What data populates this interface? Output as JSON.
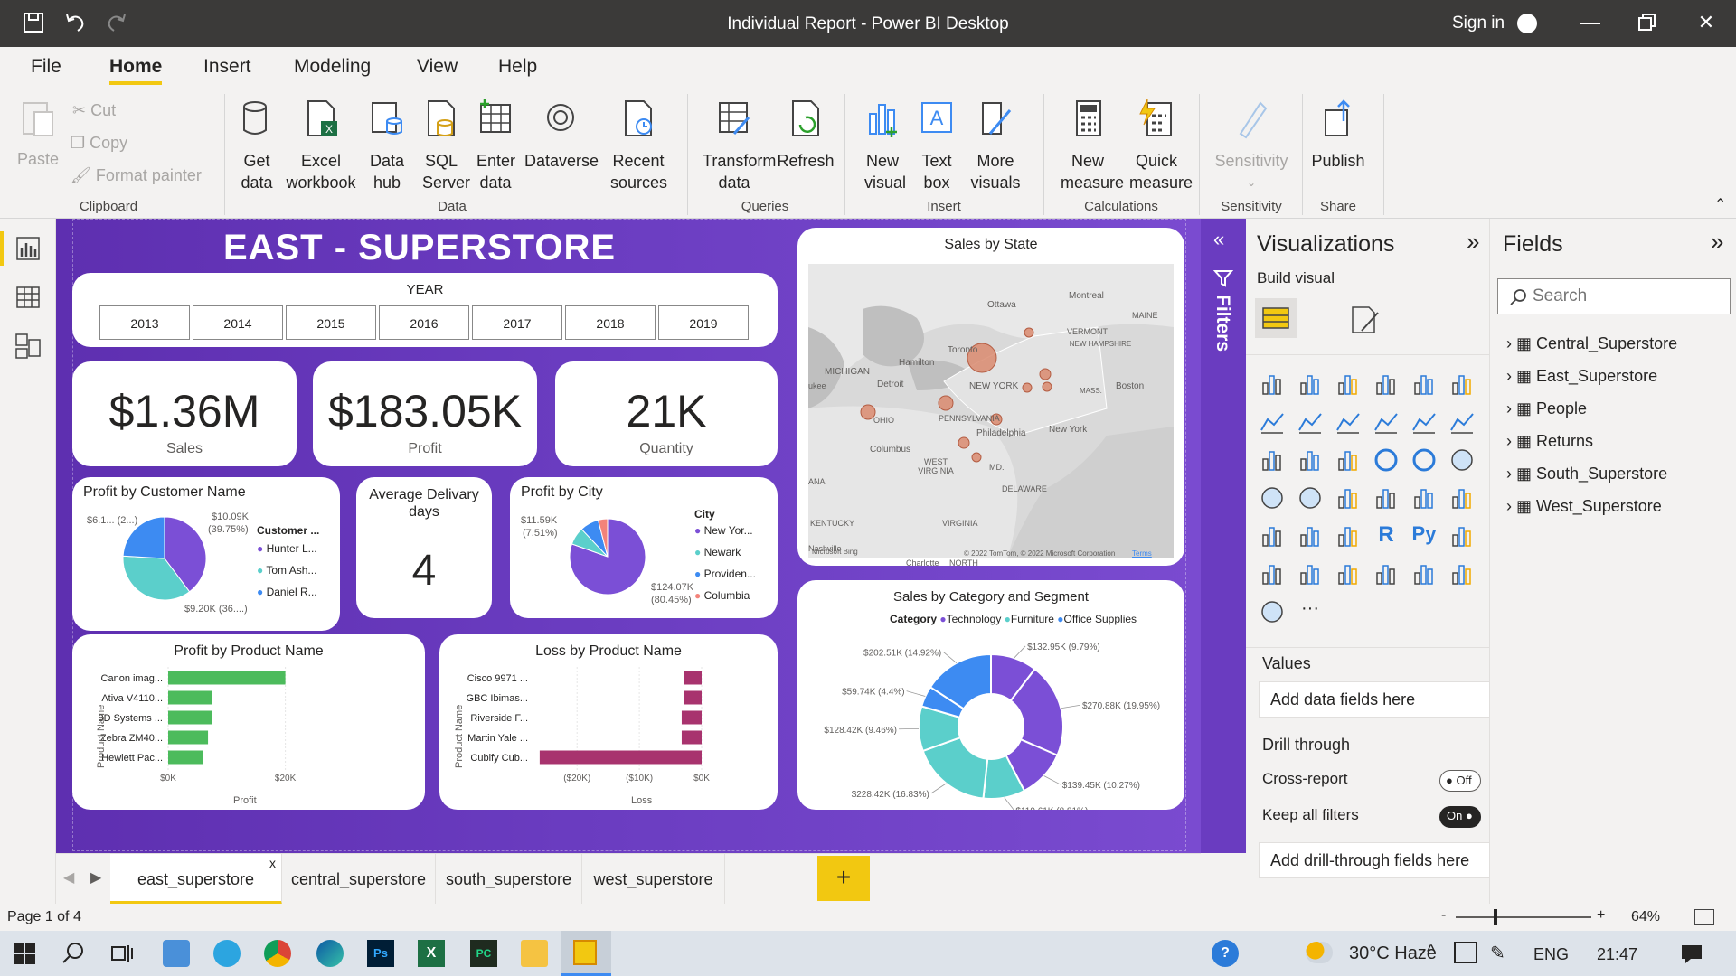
{
  "window": {
    "title": "Individual Report - Power BI Desktop",
    "sign_in": "Sign in"
  },
  "menu": [
    "File",
    "Home",
    "Insert",
    "Modeling",
    "View",
    "Help"
  ],
  "ribbon": {
    "clipboard": {
      "paste": "Paste",
      "cut": "Cut",
      "copy": "Copy",
      "format_painter": "Format painter",
      "group": "Clipboard"
    },
    "data": {
      "get_data": "Get data",
      "excel": "Excel workbook",
      "data_hub": "Data hub",
      "sql": "SQL Server",
      "enter": "Enter data",
      "dataverse": "Dataverse",
      "recent": "Recent sources",
      "group": "Data"
    },
    "queries": {
      "transform": "Transform data",
      "refresh": "Refresh",
      "group": "Queries"
    },
    "insert": {
      "new_visual": "New visual",
      "text_box": "Text box",
      "more_visuals": "More visuals",
      "group": "Insert"
    },
    "calc": {
      "new_measure": "New measure",
      "quick_measure": "Quick measure",
      "group": "Calculations"
    },
    "sens": {
      "sensitivity": "Sensitivity",
      "group": "Sensitivity"
    },
    "share": {
      "publish": "Publish",
      "group": "Share"
    }
  },
  "report": {
    "title": "EAST - SUPERSTORE",
    "year_label": "YEAR",
    "years": [
      "2013",
      "2014",
      "2015",
      "2016",
      "2017",
      "2018",
      "2019"
    ],
    "kpis": [
      {
        "value": "$1.36M",
        "label": "Sales"
      },
      {
        "value": "$183.05K",
        "label": "Profit"
      },
      {
        "value": "21K",
        "label": "Quantity"
      }
    ],
    "profit_customer": {
      "title": "Profit by Customer Name",
      "legend_title": "Customer ...",
      "legend": [
        "Hunter L...",
        "Tom Ash...",
        "Daniel R..."
      ],
      "lbl1": "$6.1... (2...)",
      "lbl2": "$10.09K",
      "lbl2b": "(39.75%)",
      "lbl3": "$9.20K (36....)"
    },
    "avg_delivery": {
      "title": "Average Delivary days",
      "value": "4"
    },
    "profit_city": {
      "title": "Profit by City",
      "legend_title": "City",
      "legend": [
        "New Yor...",
        "Newark",
        "Providen...",
        "Columbia"
      ],
      "lbl1": "$11.59K",
      "lbl1b": "(7.51%)",
      "lbl2": "$124.07K",
      "lbl2b": "(80.45%)"
    },
    "sales_state": {
      "title": "Sales by State",
      "places": [
        "Ottawa",
        "Montreal",
        "MAINE",
        "VERMONT",
        "NEW HAMPSHIRE",
        "MICHIGAN",
        "Hamilton",
        "Toronto",
        "Detroit",
        "NEW YORK",
        "Boston",
        "MASS.",
        "PENNSYLVANIA",
        "OHIO",
        "Philadelphia",
        "New York",
        "Columbus",
        "WEST VIRGINIA",
        "MD.",
        "DELAWARE",
        "VIRGINIA",
        "KENTUCKY",
        "Charlotte",
        "Nashville",
        "NORTH",
        "ANA",
        "ukee"
      ],
      "credit": "© 2022 TomTom, © 2022 Microsoft Corporation",
      "terms": "Terms",
      "bing": "Microsoft Bing"
    },
    "profit_product": {
      "title": "Profit by Product Name",
      "ylabel": "Product Name",
      "xlabel": "Profit",
      "ticks": [
        "$0K",
        "$20K"
      ]
    },
    "loss_product": {
      "title": "Loss by Product Name",
      "ylabel": "Product Name",
      "xlabel": "Loss",
      "ticks": [
        "($20K)",
        "($10K)",
        "$0K"
      ]
    },
    "cat_segment": {
      "title": "Sales by Category and Segment",
      "legend_title": "Category",
      "legend": [
        "Technology",
        "Furniture",
        "Office Supplies"
      ]
    }
  },
  "chart_data": [
    {
      "type": "bar",
      "title": "Profit by Product Name",
      "categories": [
        "Canon imag...",
        "Ativa V4110...",
        "3D Systems ...",
        "Zebra ZM40...",
        "Hewlett Pac..."
      ],
      "values": [
        20,
        7.5,
        7.5,
        6.8,
        6.0
      ],
      "xlabel": "Profit",
      "ylabel": "Product Name",
      "xlim": [
        0,
        25
      ]
    },
    {
      "type": "bar",
      "title": "Loss by Product Name",
      "categories": [
        "Cisco 9971 ...",
        "GBC Ibimas...",
        "Riverside F...",
        "Martin Yale ...",
        "Cubify Cub..."
      ],
      "values": [
        -2.8,
        -2.8,
        -3.2,
        -3.2,
        -26
      ],
      "xlabel": "Loss",
      "ylabel": "Product Name",
      "xlim": [
        -27,
        0
      ]
    },
    {
      "type": "pie",
      "title": "Profit by Customer Name",
      "categories": [
        "Hunter L...",
        "Tom Ash...",
        "Daniel R..."
      ],
      "values": [
        39.75,
        36.2,
        24.05
      ],
      "colors": [
        "#7b4fd6",
        "#5bcfcb",
        "#3d8bf2"
      ]
    },
    {
      "type": "pie",
      "title": "Profit by City",
      "categories": [
        "New Yor...",
        "Newark",
        "Providen...",
        "Columbia"
      ],
      "values": [
        80.45,
        7.51,
        8.0,
        4.04
      ],
      "colors": [
        "#7b4fd6",
        "#5bcfcb",
        "#3d8bf2",
        "#f3837a"
      ]
    },
    {
      "type": "pie",
      "title": "Sales by Category and Segment",
      "categories": [
        "Technology",
        "Furniture",
        "Office Supplies"
      ],
      "segments": [
        {
          "label": "$132.95K (9.79%)",
          "value": 9.79,
          "color": "#7b4fd6"
        },
        {
          "label": "$270.88K (19.95%)",
          "value": 19.95,
          "color": "#7b4fd6"
        },
        {
          "label": "$139.45K (10.27%)",
          "value": 10.27,
          "color": "#7b4fd6"
        },
        {
          "label": "$119.61K (8.81%)",
          "value": 8.81,
          "color": "#5bcfcb"
        },
        {
          "label": "$228.42K (16.83%)",
          "value": 16.83,
          "color": "#5bcfcb"
        },
        {
          "label": "$128.42K (9.46%)",
          "value": 9.46,
          "color": "#5bcfcb"
        },
        {
          "label": "$59.74K (4.4%)",
          "value": 4.4,
          "color": "#3d8bf2"
        },
        {
          "label": "$202.51K (14.92%)",
          "value": 14.92,
          "color": "#3d8bf2"
        }
      ]
    }
  ],
  "filters_label": "Filters",
  "viz_panel": {
    "title": "Visualizations",
    "build": "Build visual",
    "values": "Values",
    "add_data": "Add data fields here",
    "drill": "Drill through",
    "cross": "Cross-report",
    "cross_state": "Off",
    "keep": "Keep all filters",
    "keep_state": "On",
    "add_drill": "Add drill-through fields here"
  },
  "fields_panel": {
    "title": "Fields",
    "search_placeholder": "Search",
    "tables": [
      "Central_Superstore",
      "East_Superstore",
      "People",
      "Returns",
      "South_Superstore",
      "West_Superstore"
    ]
  },
  "tabs": [
    "east_superstore",
    "central_superstore",
    "south_superstore",
    "west_superstore"
  ],
  "status": {
    "page": "Page 1 of 4",
    "zoom": "64%"
  },
  "taskbar": {
    "weather": "30°C  Haze",
    "lang": "ENG",
    "time": "21:47"
  },
  "colors": {
    "purple": "#7b4fd6",
    "teal": "#5bcfcb",
    "blue": "#3d8bf2",
    "green": "#4cbb5c",
    "maroon": "#a8336e",
    "accent": "#f2c811"
  }
}
